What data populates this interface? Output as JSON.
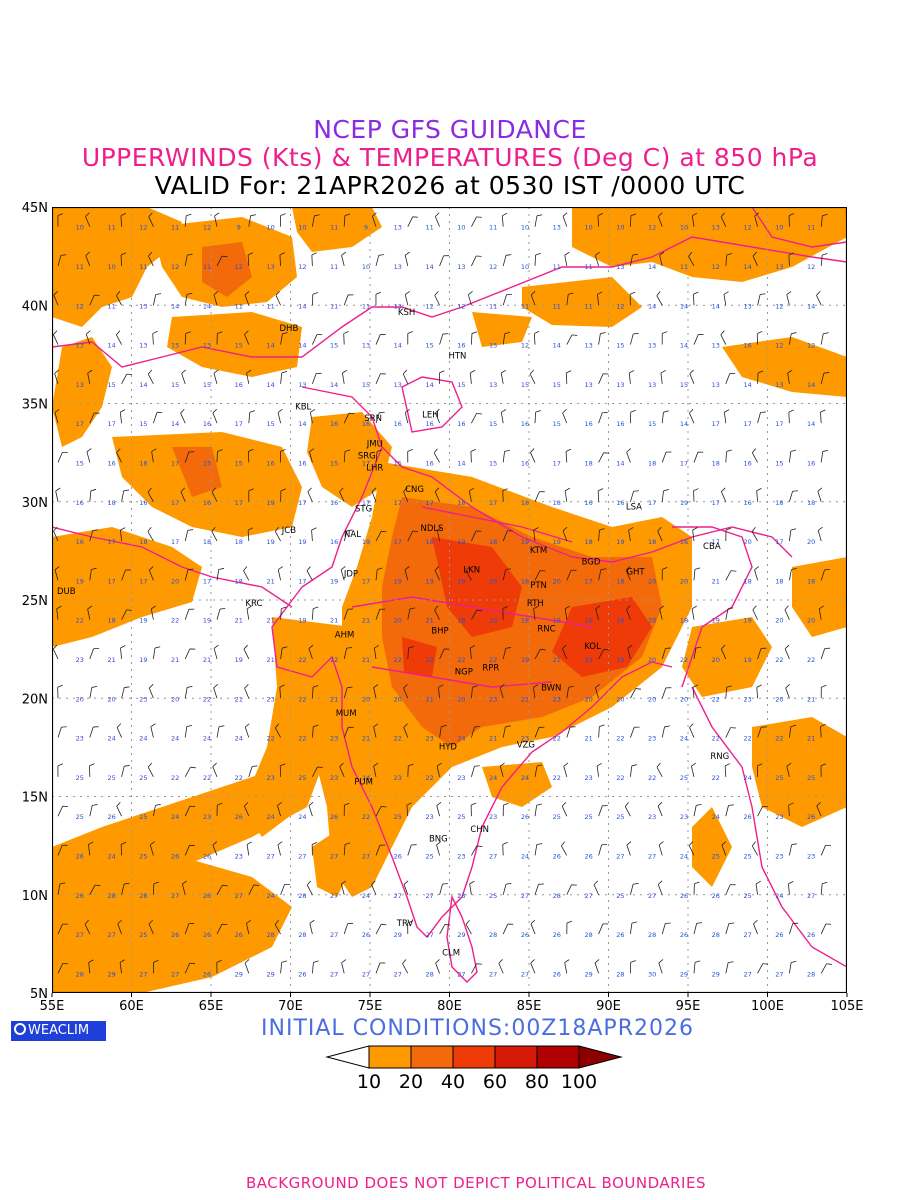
{
  "header": {
    "line1": "NCEP GFS GUIDANCE",
    "line2": "UPPERWINDS (Kts) & TEMPERATURES (Deg C) at 850 hPa",
    "line3": "VALID For: 21APR2026 at 0530 IST /0000 UTC"
  },
  "map": {
    "lon_range": [
      55,
      105
    ],
    "lat_range": [
      5,
      45
    ],
    "grid": true,
    "lon_labels": [
      "55E",
      "60E",
      "65E",
      "70E",
      "75E",
      "80E",
      "85E",
      "90E",
      "95E",
      "100E",
      "105E"
    ],
    "lat_labels": [
      "45N",
      "40N",
      "35N",
      "30N",
      "25N",
      "20N",
      "15N",
      "10N",
      "5N"
    ],
    "stations": [
      {
        "code": "KSH",
        "lon": 77.3,
        "lat": 39.5
      },
      {
        "code": "DHB",
        "lon": 69.9,
        "lat": 38.7
      },
      {
        "code": "HTN",
        "lon": 80.5,
        "lat": 37.3
      },
      {
        "code": "KBL",
        "lon": 70.8,
        "lat": 34.7
      },
      {
        "code": "SRN",
        "lon": 75.2,
        "lat": 34.1
      },
      {
        "code": "LEH",
        "lon": 78.8,
        "lat": 34.3
      },
      {
        "code": "JMU",
        "lon": 75.3,
        "lat": 32.8
      },
      {
        "code": "SRG",
        "lon": 74.8,
        "lat": 32.2
      },
      {
        "code": "LHR",
        "lon": 75.3,
        "lat": 31.6
      },
      {
        "code": "CNG",
        "lon": 77.8,
        "lat": 30.5
      },
      {
        "code": "STG",
        "lon": 74.6,
        "lat": 29.5
      },
      {
        "code": "LSA",
        "lon": 91.6,
        "lat": 29.6
      },
      {
        "code": "JCB",
        "lon": 69.9,
        "lat": 28.4
      },
      {
        "code": "NAL",
        "lon": 73.9,
        "lat": 28.2
      },
      {
        "code": "NDLS",
        "lon": 78.9,
        "lat": 28.5
      },
      {
        "code": "KTM",
        "lon": 85.6,
        "lat": 27.4
      },
      {
        "code": "CBA",
        "lon": 96.5,
        "lat": 27.6
      },
      {
        "code": "BGD",
        "lon": 88.9,
        "lat": 26.8
      },
      {
        "code": "JDP",
        "lon": 73.8,
        "lat": 26.2
      },
      {
        "code": "LKN",
        "lon": 81.4,
        "lat": 26.4
      },
      {
        "code": "GHT",
        "lon": 91.7,
        "lat": 26.3
      },
      {
        "code": "DUB",
        "lon": 55.9,
        "lat": 25.3
      },
      {
        "code": "PTN",
        "lon": 85.6,
        "lat": 25.6
      },
      {
        "code": "RTH",
        "lon": 85.4,
        "lat": 24.7
      },
      {
        "code": "KRC",
        "lon": 67.7,
        "lat": 24.7
      },
      {
        "code": "AHM",
        "lon": 73.4,
        "lat": 23.1
      },
      {
        "code": "BHP",
        "lon": 79.4,
        "lat": 23.3
      },
      {
        "code": "RNC",
        "lon": 86.1,
        "lat": 23.4
      },
      {
        "code": "KOL",
        "lon": 89.0,
        "lat": 22.5
      },
      {
        "code": "NGP",
        "lon": 80.9,
        "lat": 21.2
      },
      {
        "code": "RPR",
        "lon": 82.6,
        "lat": 21.4
      },
      {
        "code": "BWN",
        "lon": 86.4,
        "lat": 20.4
      },
      {
        "code": "MUM",
        "lon": 73.5,
        "lat": 19.1
      },
      {
        "code": "HYD",
        "lon": 79.9,
        "lat": 17.4
      },
      {
        "code": "VZG",
        "lon": 84.8,
        "lat": 17.5
      },
      {
        "code": "RNG",
        "lon": 97.0,
        "lat": 16.9
      },
      {
        "code": "PUM",
        "lon": 74.6,
        "lat": 15.6
      },
      {
        "code": "CHN",
        "lon": 81.9,
        "lat": 13.2
      },
      {
        "code": "BNG",
        "lon": 79.3,
        "lat": 12.7
      },
      {
        "code": "TRV",
        "lon": 77.2,
        "lat": 8.4
      },
      {
        "code": "CLM",
        "lon": 80.1,
        "lat": 6.9
      }
    ]
  },
  "legend": {
    "levels": [
      "10",
      "20",
      "40",
      "60",
      "80",
      "100"
    ],
    "colors": [
      "#ffffff",
      "#ff9900",
      "#f26a0a",
      "#ee3b07",
      "#d71a08",
      "#b00000",
      "#8c0000"
    ]
  },
  "initial_conditions": "INITIAL CONDITIONS:00Z18APR2026",
  "logo_text": "WEACLIM",
  "footer": "BACKGROUND DOES NOT DEPICT POLITICAL BOUNDARIES",
  "colors": {
    "title1": "#8a2be2",
    "title2": "#ee1f8c",
    "wind_shading_light": "#ff9900",
    "wind_shading_mid": "#f26a0a",
    "wind_shading_high": "#ee3b07",
    "boundary": "#ee1f8c",
    "temperature_labels": "#2b4fd6"
  }
}
